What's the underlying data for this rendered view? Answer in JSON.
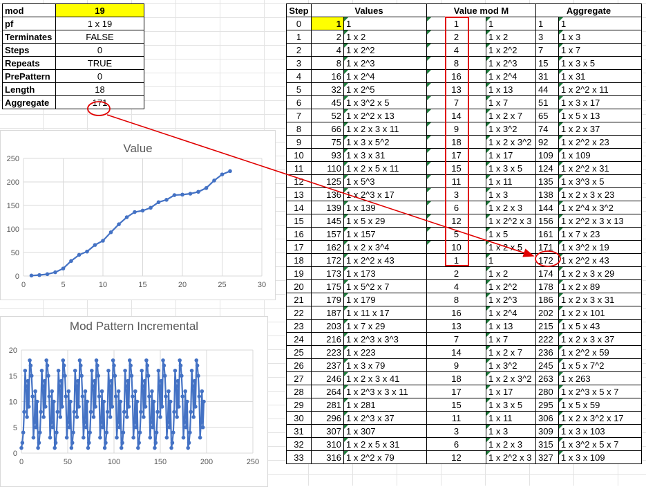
{
  "params": [
    {
      "key": "mod",
      "value": "19",
      "highlight": true
    },
    {
      "key": "pf",
      "value": "1 x 19"
    },
    {
      "key": "Terminates",
      "value": "FALSE"
    },
    {
      "key": "Steps",
      "value": "0"
    },
    {
      "key": "Repeats",
      "value": "TRUE"
    },
    {
      "key": "PrePattern",
      "value": "0"
    },
    {
      "key": "Length",
      "value": "18"
    },
    {
      "key": "Aggregate",
      "value": "171"
    }
  ],
  "table": {
    "headers": [
      "Step",
      "Values",
      "Value mod M",
      "Aggregate"
    ],
    "rows": [
      [
        "0",
        "1",
        "1",
        "1",
        "1",
        "1",
        "1"
      ],
      [
        "1",
        "2",
        "1 x 2",
        "2",
        "1 x 2",
        "3",
        "1 x 3"
      ],
      [
        "2",
        "4",
        "1 x 2^2",
        "4",
        "1 x 2^2",
        "7",
        "1 x 7"
      ],
      [
        "3",
        "8",
        "1 x 2^3",
        "8",
        "1 x 2^3",
        "15",
        "1 x 3 x 5"
      ],
      [
        "4",
        "16",
        "1 x 2^4",
        "16",
        "1 x 2^4",
        "31",
        "1 x 31"
      ],
      [
        "5",
        "32",
        "1 x 2^5",
        "13",
        "1 x 13",
        "44",
        "1 x 2^2 x 11"
      ],
      [
        "6",
        "45",
        "1 x 3^2 x 5",
        "7",
        "1 x 7",
        "51",
        "1 x 3 x 17"
      ],
      [
        "7",
        "52",
        "1 x 2^2 x 13",
        "14",
        "1 x 2 x 7",
        "65",
        "1 x 5 x 13"
      ],
      [
        "8",
        "66",
        "1 x 2 x 3 x 11",
        "9",
        "1 x 3^2",
        "74",
        "1 x 2 x 37"
      ],
      [
        "9",
        "75",
        "1 x 3 x 5^2",
        "18",
        "1 x 2 x 3^2",
        "92",
        "1 x 2^2 x 23"
      ],
      [
        "10",
        "93",
        "1 x 3 x 31",
        "17",
        "1 x 17",
        "109",
        "1 x 109"
      ],
      [
        "11",
        "110",
        "1 x 2 x 5 x 11",
        "15",
        "1 x 3 x 5",
        "124",
        "1 x 2^2 x 31"
      ],
      [
        "12",
        "125",
        "1 x 5^3",
        "11",
        "1 x 11",
        "135",
        "1 x 3^3 x 5"
      ],
      [
        "13",
        "136",
        "1 x 2^3 x 17",
        "3",
        "1 x 3",
        "138",
        "1 x 2 x 3 x 23"
      ],
      [
        "14",
        "139",
        "1 x 139",
        "6",
        "1 x 2 x 3",
        "144",
        "1 x 2^4 x 3^2"
      ],
      [
        "15",
        "145",
        "1 x 5 x 29",
        "12",
        "1 x 2^2 x 3",
        "156",
        "1 x 2^2 x 3 x 13"
      ],
      [
        "16",
        "157",
        "1 x 157",
        "5",
        "1 x 5",
        "161",
        "1 x 7 x 23"
      ],
      [
        "17",
        "162",
        "1 x 2 x 3^4",
        "10",
        "1 x 2 x 5",
        "171",
        "1 x 3^2 x 19"
      ],
      [
        "18",
        "172",
        "1 x 2^2 x 43",
        "1",
        "1",
        "172",
        "1 x 2^2 x 43"
      ],
      [
        "19",
        "173",
        "1 x 173",
        "2",
        "1 x 2",
        "174",
        "1 x 2 x 3 x 29"
      ],
      [
        "20",
        "175",
        "1 x 5^2 x 7",
        "4",
        "1 x 2^2",
        "178",
        "1 x 2 x 89"
      ],
      [
        "21",
        "179",
        "1 x 179",
        "8",
        "1 x 2^3",
        "186",
        "1 x 2 x 3 x 31"
      ],
      [
        "22",
        "187",
        "1 x 11 x 17",
        "16",
        "1 x 2^4",
        "202",
        "1 x 2 x 101"
      ],
      [
        "23",
        "203",
        "1 x 7 x 29",
        "13",
        "1 x 13",
        "215",
        "1 x 5 x 43"
      ],
      [
        "24",
        "216",
        "1 x 2^3 x 3^3",
        "7",
        "1 x 7",
        "222",
        "1 x 2 x 3 x 37"
      ],
      [
        "25",
        "223",
        "1 x 223",
        "14",
        "1 x 2 x 7",
        "236",
        "1 x 2^2 x 59"
      ],
      [
        "26",
        "237",
        "1 x 3 x 79",
        "9",
        "1 x 3^2",
        "245",
        "1 x 5 x 7^2"
      ],
      [
        "27",
        "246",
        "1 x 2 x 3 x 41",
        "18",
        "1 x 2 x 3^2",
        "263",
        "1 x 263"
      ],
      [
        "28",
        "264",
        "1 x 2^3 x 3 x 11",
        "17",
        "1 x 17",
        "280",
        "1 x 2^3 x 5 x 7"
      ],
      [
        "29",
        "281",
        "1 x 281",
        "15",
        "1 x 3 x 5",
        "295",
        "1 x 5 x 59"
      ],
      [
        "30",
        "296",
        "1 x 2^3 x 37",
        "11",
        "1 x 11",
        "306",
        "1 x 2 x 3^2 x 17"
      ],
      [
        "31",
        "307",
        "1 x 307",
        "3",
        "1 x 3",
        "309",
        "1 x 3 x 103"
      ],
      [
        "32",
        "310",
        "1 x 2 x 5 x 31",
        "6",
        "1 x 2 x 3",
        "315",
        "1 x 3^2 x 5 x 7"
      ],
      [
        "33",
        "316",
        "1 x 2^2 x 79",
        "12",
        "1 x 2^2 x 3",
        "327",
        "1 x 3 x 109"
      ]
    ]
  },
  "chart_data": [
    {
      "type": "line",
      "title": "Value",
      "xlim": [
        0,
        30
      ],
      "ylim": [
        0,
        250
      ],
      "xticks": [
        "0",
        "5",
        "10",
        "15",
        "20",
        "25",
        "30"
      ],
      "yticks": [
        "0",
        "50",
        "100",
        "150",
        "200",
        "250"
      ],
      "x": [
        1,
        2,
        3,
        4,
        5,
        6,
        7,
        8,
        9,
        10,
        11,
        12,
        13,
        14,
        15,
        16,
        17,
        18,
        19,
        20,
        21,
        22,
        23,
        24,
        25,
        26
      ],
      "y": [
        1,
        2,
        4,
        8,
        16,
        32,
        45,
        52,
        66,
        75,
        93,
        110,
        125,
        136,
        139,
        145,
        157,
        162,
        172,
        173,
        175,
        179,
        187,
        203,
        216,
        223
      ],
      "color": "#4472c4",
      "grid": true
    },
    {
      "type": "line",
      "title": "Mod Pattern Incremental",
      "xlim": [
        0,
        250
      ],
      "ylim": [
        0,
        20
      ],
      "xticks": [
        "0",
        "50",
        "100",
        "150",
        "200",
        "250"
      ],
      "yticks": [
        "0",
        "5",
        "10",
        "15",
        "20"
      ],
      "pattern": [
        1,
        2,
        4,
        8,
        16,
        13,
        7,
        14,
        9,
        18,
        17,
        15,
        11,
        3,
        6,
        12,
        5,
        10
      ],
      "repeats": 11,
      "color": "#4472c4",
      "grid": true
    }
  ]
}
